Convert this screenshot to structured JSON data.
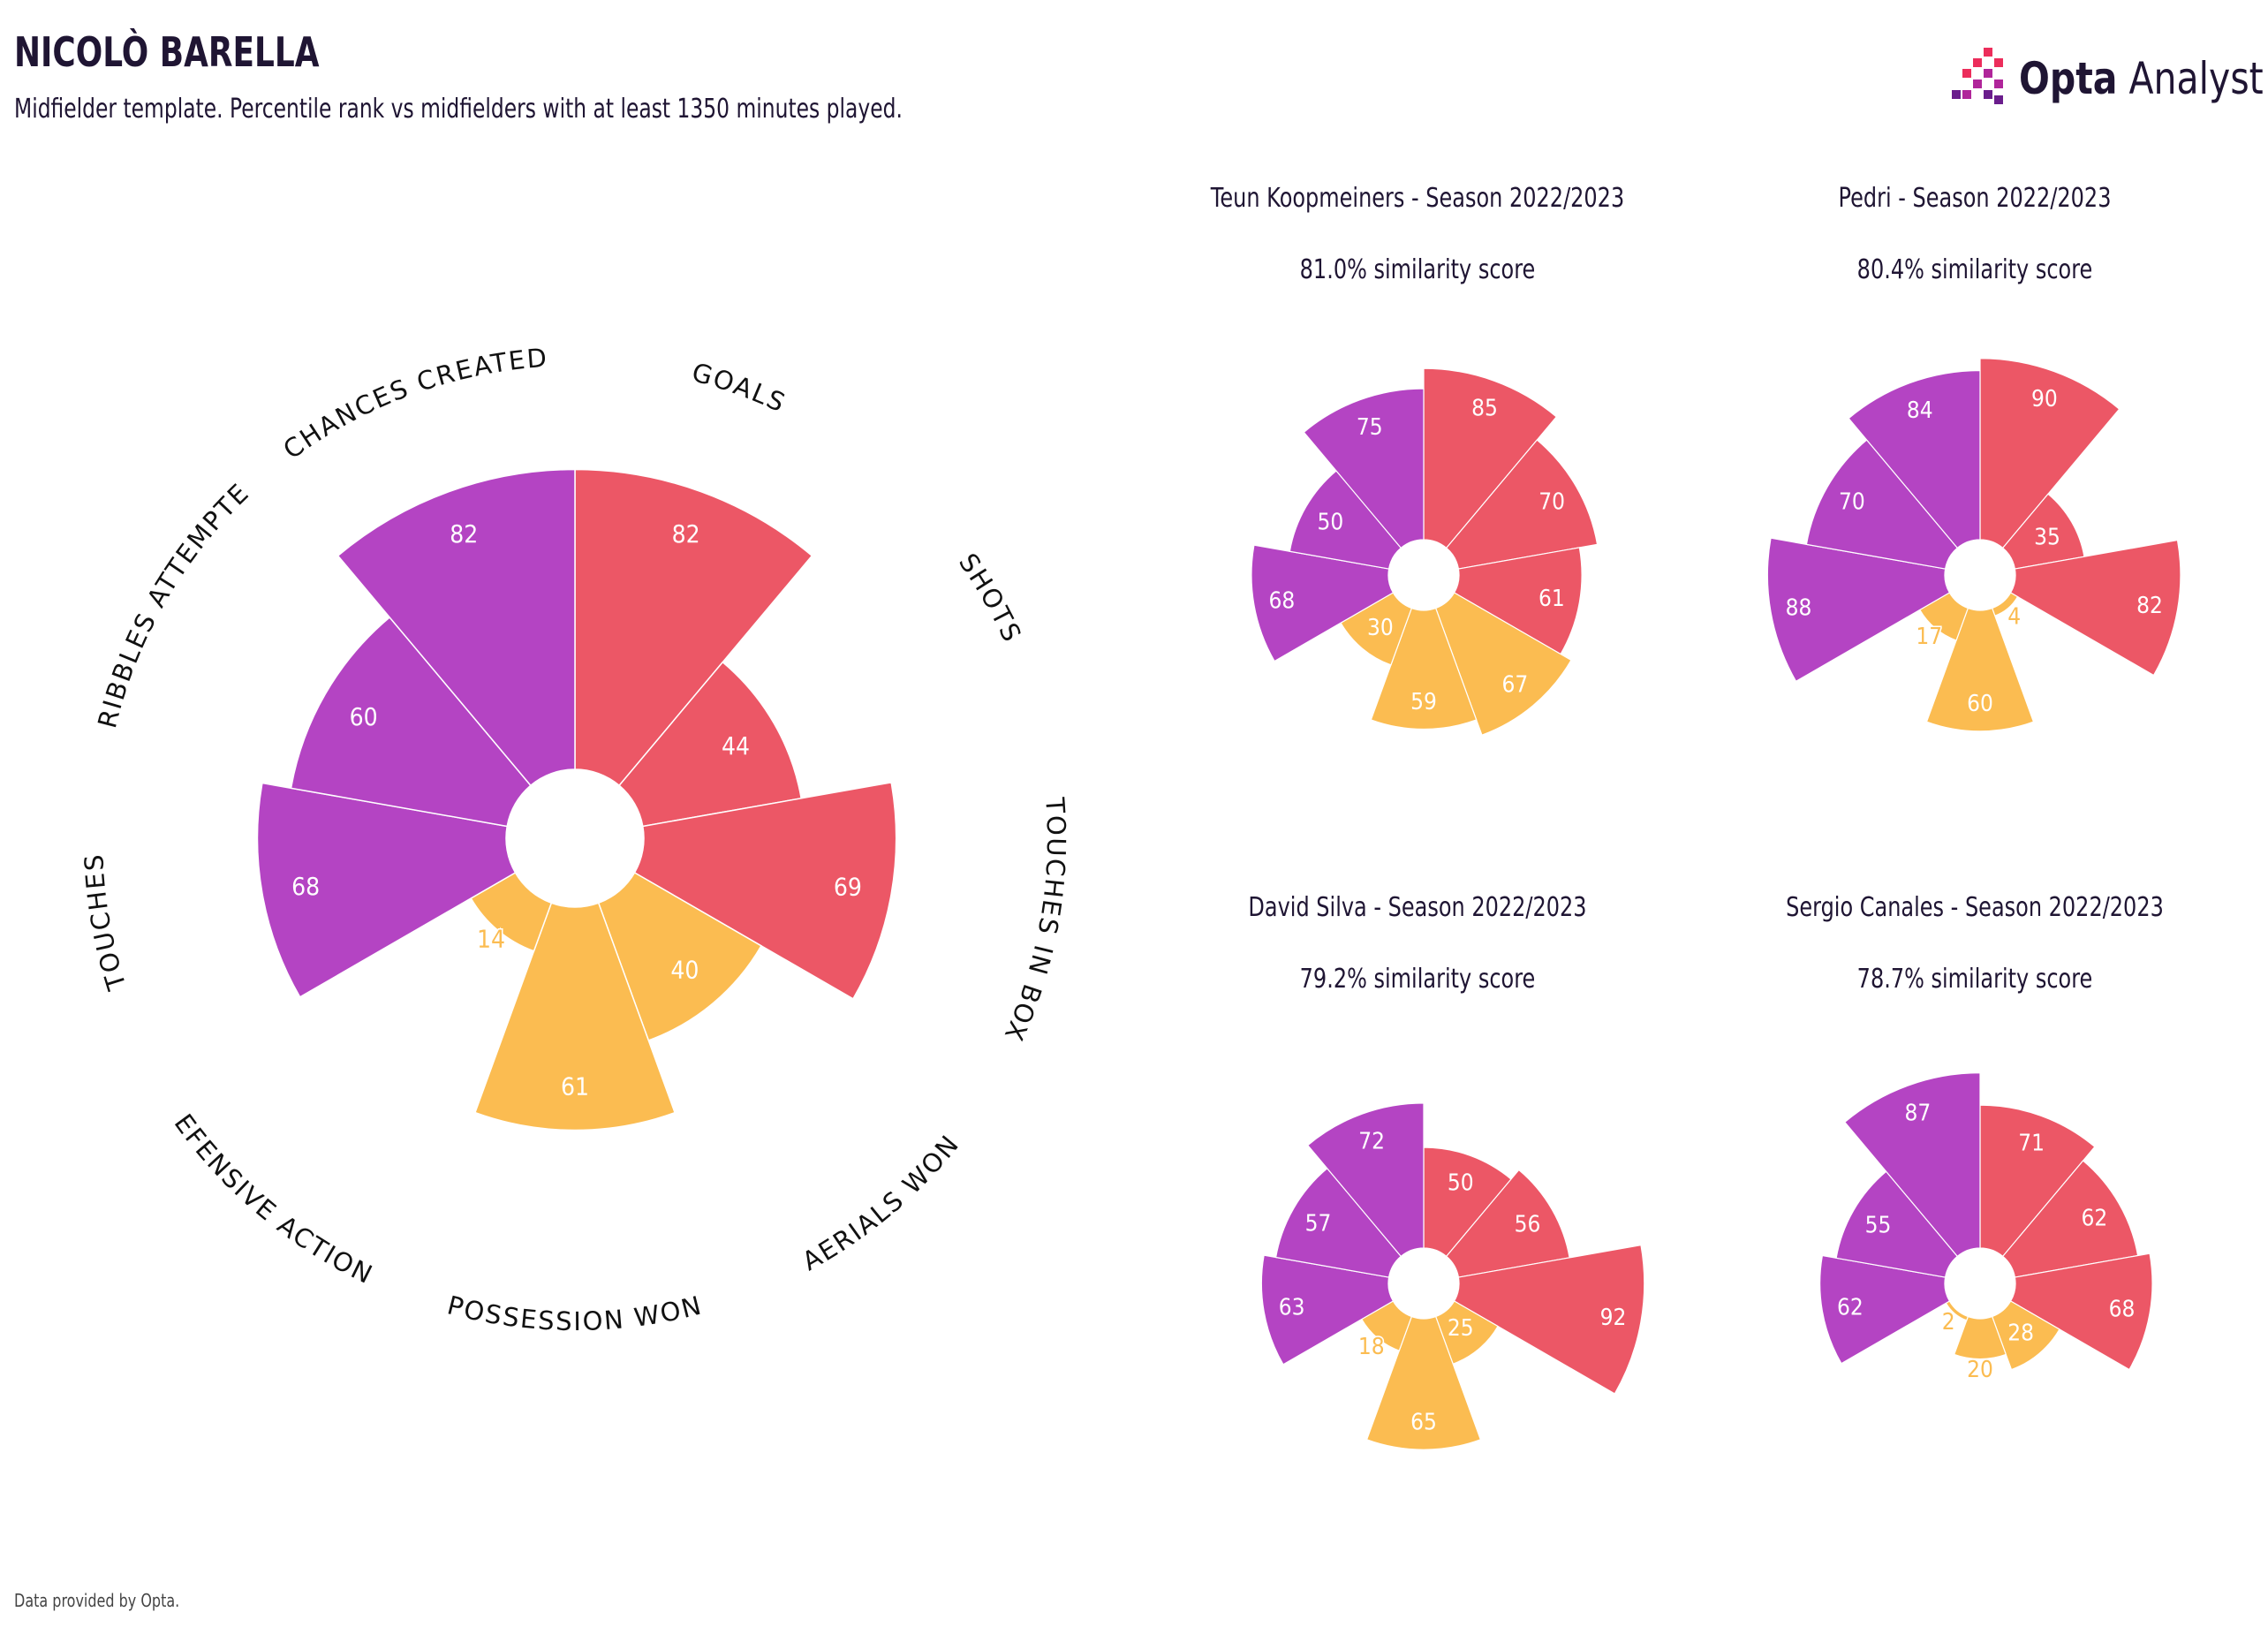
{
  "header": {
    "title": "NICOLÒ BARELLA",
    "subtitle": "Midfielder template. Percentile rank vs midfielders with at least 1350 minutes played.",
    "logo_bold": "Opta",
    "logo_light": " Analyst"
  },
  "footer": {
    "source": "Data provided by Opta."
  },
  "colors": {
    "attack": "#ec5766",
    "possession": "#fbbc51",
    "creation": "#b444c3",
    "label_text": "#ffffff"
  },
  "chart_data": [
    {
      "type": "polar-bar",
      "player": "Nicolò Barella",
      "categories": [
        "GOALS",
        "SHOTS",
        "TOUCHES IN BOX",
        "AERIALS WON",
        "POSSESSION WON",
        "DEFENSIVE ACTIONS",
        "TOUCHES",
        "DRIBBLES ATTEMPTED",
        "CHANCES CREATED"
      ],
      "groups": [
        "attack",
        "attack",
        "attack",
        "possession",
        "possession",
        "possession",
        "creation",
        "creation",
        "creation"
      ],
      "values": [
        82,
        44,
        69,
        40,
        61,
        14,
        68,
        60,
        82
      ],
      "range": [
        0,
        100
      ]
    },
    {
      "type": "polar-bar",
      "title": "Teun Koopmeiners - Season 2022/2023",
      "subtitle": "81.0% similarity score",
      "values": [
        85,
        70,
        61,
        67,
        59,
        30,
        68,
        50,
        75
      ]
    },
    {
      "type": "polar-bar",
      "title": "Pedri - Season 2022/2023",
      "subtitle": "80.4% similarity score",
      "values": [
        90,
        35,
        82,
        4,
        60,
        17,
        88,
        70,
        84
      ]
    },
    {
      "type": "polar-bar",
      "title": "David Silva - Season 2022/2023",
      "subtitle": "79.2% similarity score",
      "values": [
        50,
        56,
        92,
        25,
        65,
        18,
        63,
        57,
        72
      ]
    },
    {
      "type": "polar-bar",
      "title": "Sergio Canales - Season 2022/2023",
      "subtitle": "78.7% similarity score",
      "values": [
        71,
        62,
        68,
        28,
        20,
        2,
        62,
        55,
        87
      ]
    }
  ]
}
